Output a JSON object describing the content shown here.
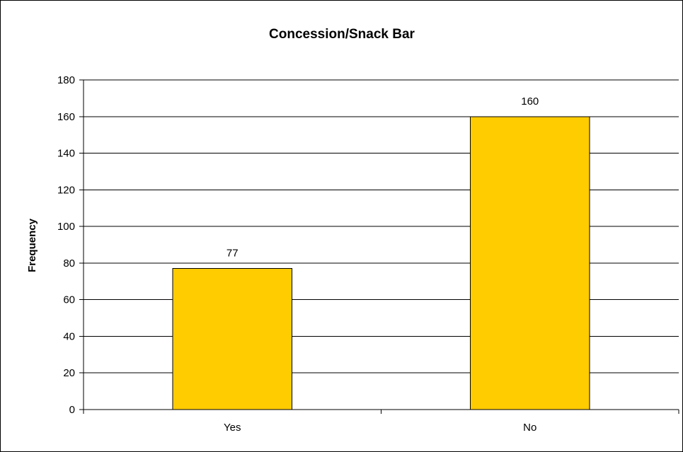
{
  "chart_data": {
    "type": "bar",
    "title": "Concession/Snack Bar",
    "xlabel": "",
    "ylabel": "Frequency",
    "categories": [
      "Yes",
      "No"
    ],
    "values": [
      77,
      160
    ],
    "data_labels": [
      "77",
      "160"
    ],
    "ylim": [
      0,
      180
    ],
    "yticks": [
      0,
      20,
      40,
      60,
      80,
      100,
      120,
      140,
      160,
      180
    ],
    "ytick_labels": [
      "0",
      "20",
      "40",
      "60",
      "80",
      "100",
      "120",
      "140",
      "160",
      "180"
    ],
    "grid": true,
    "legend": "none",
    "bar_color": "#FFCC00",
    "bar_edge_color": "#000000",
    "grid_color": "#000000"
  }
}
